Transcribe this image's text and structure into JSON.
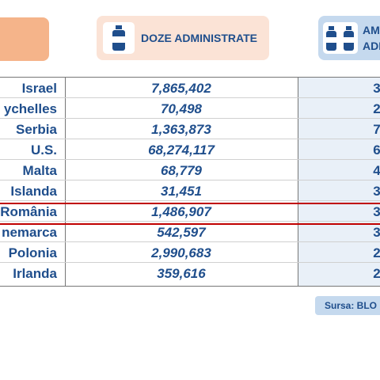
{
  "header": {
    "col1": "DOZE ADMINISTRATE",
    "col2_line1": "AM",
    "col2_line2": "ADI"
  },
  "table": {
    "rows": [
      [
        "Israel",
        "7,865,402",
        "3"
      ],
      [
        "ychelles",
        "70,498",
        "2"
      ],
      [
        "Serbia",
        "1,363,873",
        "7"
      ],
      [
        "U.S.",
        "68,274,117",
        "6"
      ],
      [
        "Malta",
        "68,779",
        "4"
      ],
      [
        "Islanda",
        "31,451",
        "3"
      ],
      [
        "România",
        "1,486,907",
        "3"
      ],
      [
        "nemarca",
        "542,597",
        "3"
      ],
      [
        "Polonia",
        "2,990,683",
        "2"
      ],
      [
        "Irlanda",
        "359,616",
        "2"
      ]
    ]
  },
  "source": "Sursa: BLO"
}
